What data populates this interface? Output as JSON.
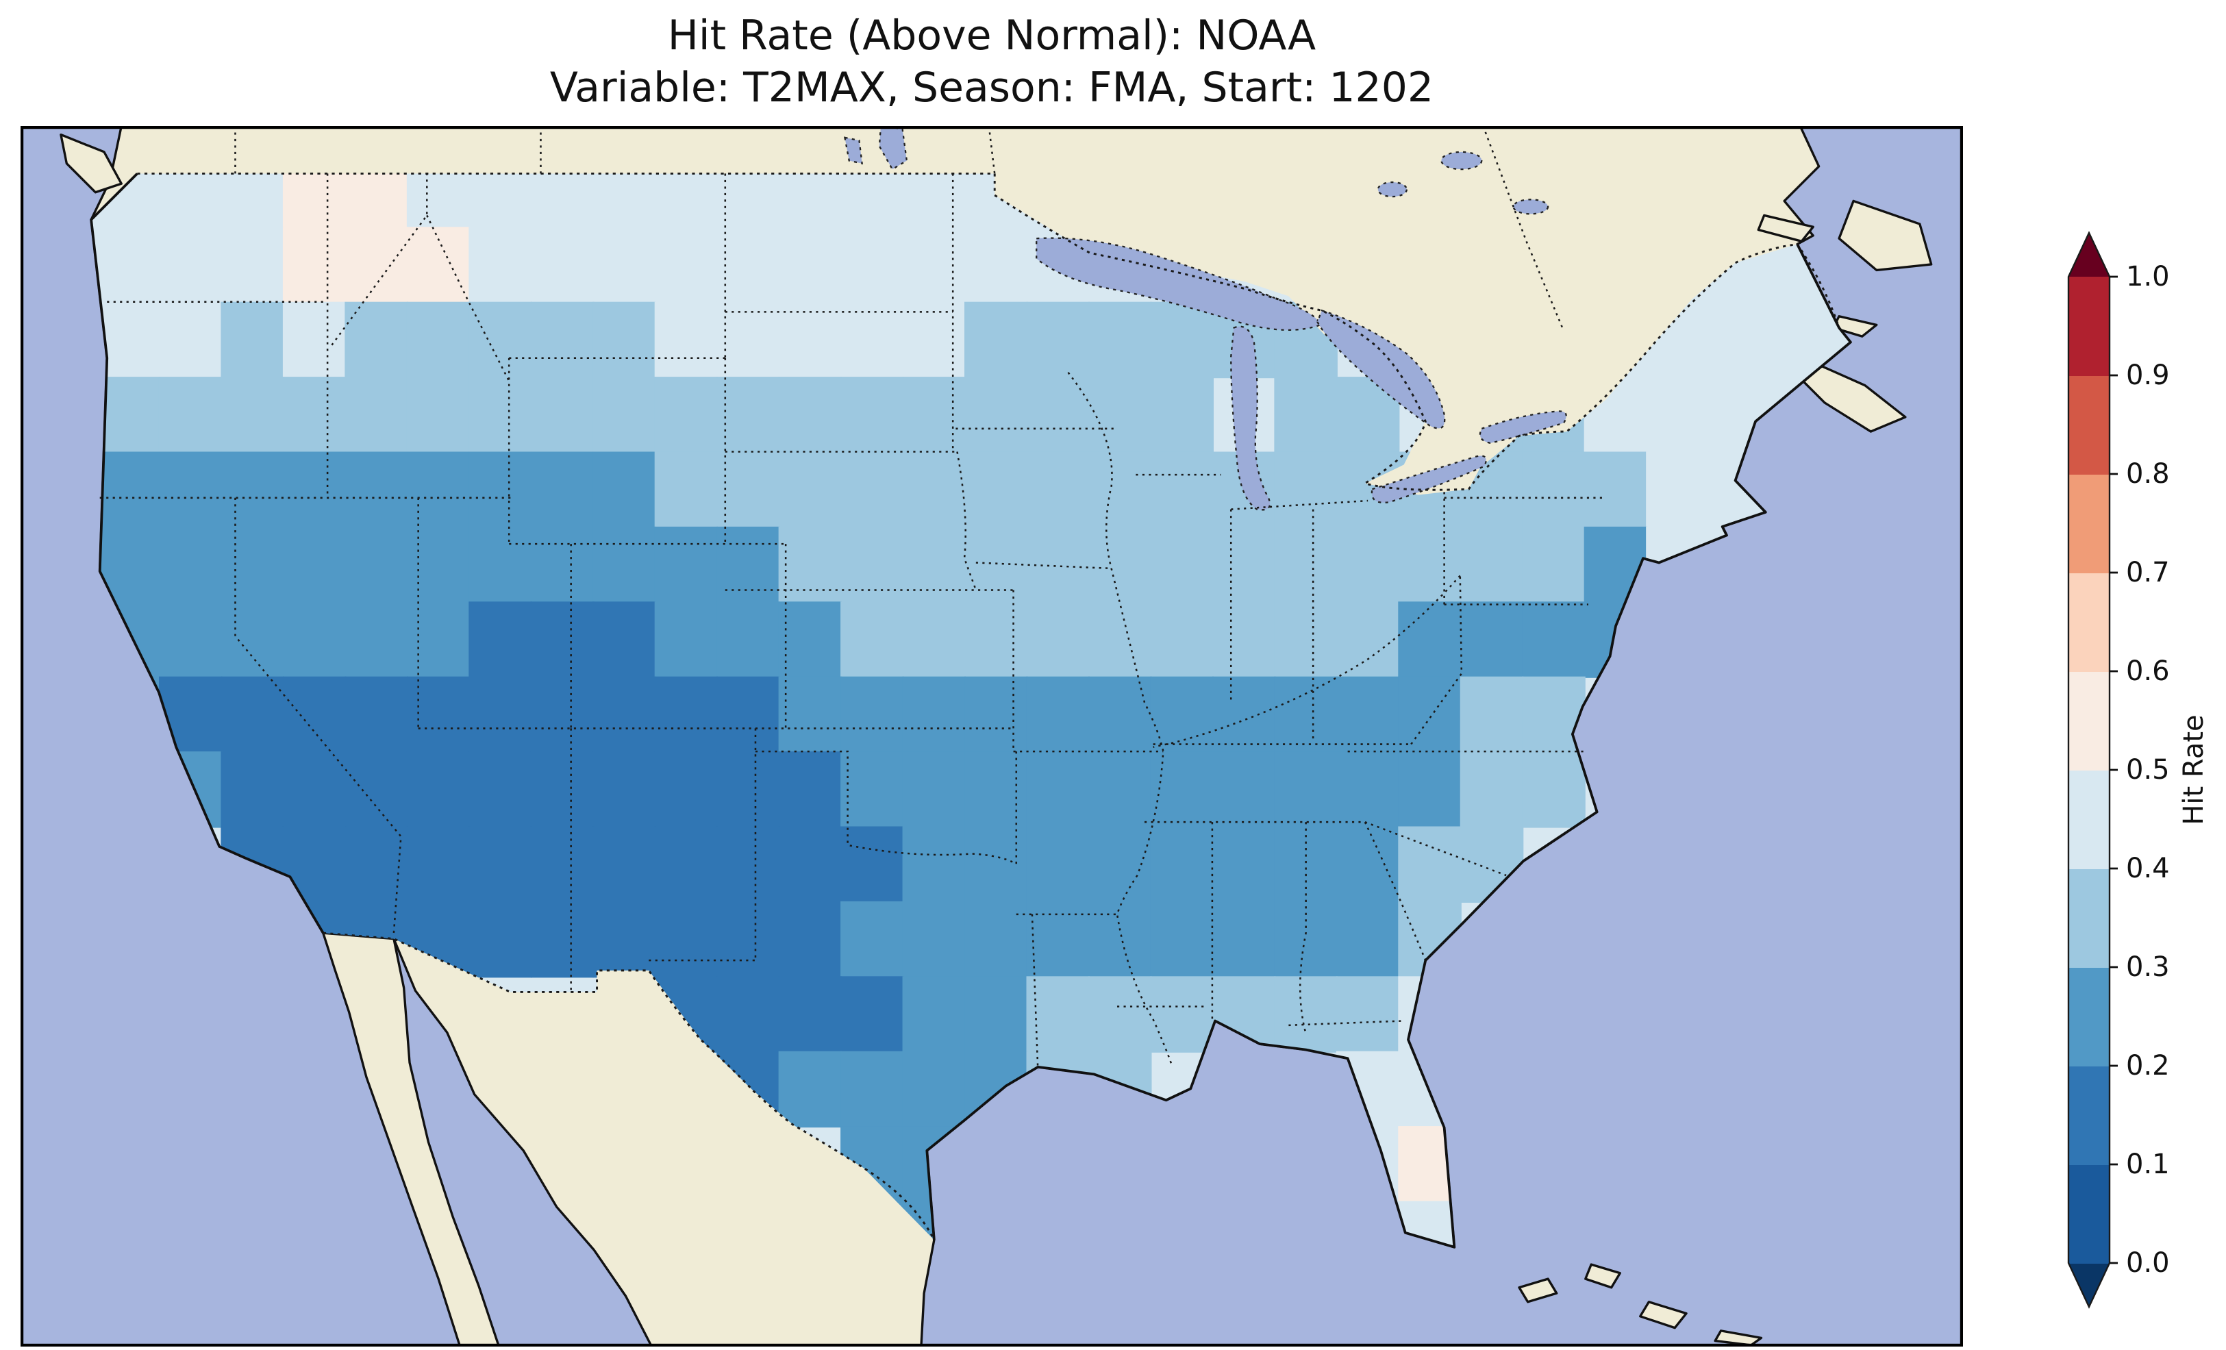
{
  "title": {
    "line1": "Hit Rate (Above Normal): NOAA",
    "line2": "Variable: T2MAX, Season: FMA, Start: 1202"
  },
  "colorbar": {
    "label": "Hit Rate",
    "tick_labels_top_to_bottom": [
      "1.0",
      "0.9",
      "0.8",
      "0.7",
      "0.6",
      "0.5",
      "0.4",
      "0.3",
      "0.2",
      "0.1",
      "0.0"
    ],
    "bin_colors_bottom_to_top": [
      "#1a5a9c",
      "#3076b4",
      "#5199c6",
      "#9dc8e0",
      "#d8e8f1",
      "#f9ece3",
      "#fbd3bc",
      "#f09c77",
      "#d35846",
      "#b0212f"
    ],
    "under_arrow_color": "#0a3666",
    "over_arrow_color": "#67001f",
    "outline_color": "#1a1a1a"
  },
  "map_style": {
    "ocean_color": "#a7b5de",
    "land_color": "#f0ecd6",
    "lake_color": "#9cacd8",
    "us_base_color": "#d8e8f1",
    "border_color": "#1a1a1a"
  },
  "chart_data": {
    "type": "heatmap",
    "title": "Hit Rate (Above Normal): NOAA",
    "subtitle": "Variable: T2MAX, Season: FMA, Start: 1202",
    "source": "NOAA",
    "variable": "T2MAX",
    "season": "FMA",
    "start": "1202",
    "value_name": "Hit Rate",
    "region": "Contiguous United States",
    "vmin": 0.0,
    "vmax": 1.0,
    "bin_size": 0.1,
    "legend_position": "right",
    "grid_note": "Approximate hit-rate bin midpoints on ~2-degree grid; row 0 = north (~49N), col 0 = west (~125W); null = outside CONUS",
    "values": [
      [
        0.45,
        0.45,
        0.45,
        0.45,
        0.55,
        0.55,
        0.45,
        0.45,
        0.45,
        0.45,
        0.45,
        0.45,
        0.45,
        0.45,
        0.45,
        0.45,
        0.45,
        null,
        null,
        null,
        null,
        null,
        null,
        null,
        null,
        null,
        null,
        null,
        null
      ],
      [
        0.45,
        0.45,
        0.45,
        0.45,
        0.55,
        0.55,
        0.55,
        0.45,
        0.45,
        0.45,
        0.45,
        0.45,
        0.45,
        0.45,
        0.45,
        0.45,
        0.45,
        null,
        null,
        null,
        null,
        null,
        null,
        null,
        null,
        null,
        null,
        0.45,
        0.45
      ],
      [
        0.45,
        0.45,
        0.45,
        0.35,
        0.45,
        0.35,
        0.35,
        0.35,
        0.35,
        0.35,
        0.45,
        0.45,
        0.45,
        0.45,
        0.45,
        0.35,
        0.35,
        0.35,
        0.35,
        0.35,
        0.35,
        null,
        null,
        null,
        null,
        0.45,
        0.45,
        0.45,
        0.45
      ],
      [
        0.35,
        0.35,
        0.35,
        0.35,
        0.35,
        0.35,
        0.35,
        0.35,
        0.35,
        0.35,
        0.35,
        0.35,
        0.35,
        0.35,
        0.35,
        0.35,
        0.35,
        0.35,
        0.35,
        null,
        0.35,
        0.35,
        null,
        0.35,
        0.35,
        0.45,
        0.45,
        0.45,
        0.45
      ],
      [
        0.25,
        0.25,
        0.25,
        0.25,
        0.25,
        0.25,
        0.25,
        0.25,
        0.25,
        0.25,
        0.35,
        0.35,
        0.35,
        0.35,
        0.35,
        0.35,
        0.35,
        0.35,
        0.35,
        0.35,
        0.35,
        0.35,
        0.35,
        0.35,
        0.35,
        0.35,
        0.45,
        0.45,
        null
      ],
      [
        0.25,
        0.25,
        0.25,
        0.25,
        0.25,
        0.25,
        0.25,
        0.25,
        0.25,
        0.25,
        0.25,
        0.25,
        0.35,
        0.35,
        0.35,
        0.35,
        0.35,
        0.35,
        0.35,
        0.35,
        0.35,
        0.35,
        0.35,
        0.35,
        0.35,
        0.25,
        0.45,
        null,
        null
      ],
      [
        0.25,
        0.25,
        0.25,
        0.25,
        0.25,
        0.25,
        0.25,
        0.15,
        0.15,
        0.15,
        0.25,
        0.25,
        0.25,
        0.35,
        0.35,
        0.35,
        0.35,
        0.35,
        0.35,
        0.35,
        0.35,
        0.35,
        0.25,
        0.25,
        0.25,
        0.25,
        null,
        null,
        null
      ],
      [
        0.25,
        0.25,
        0.15,
        0.15,
        0.15,
        0.15,
        0.15,
        0.15,
        0.15,
        0.15,
        0.15,
        0.15,
        0.25,
        0.25,
        0.25,
        0.25,
        0.25,
        0.25,
        0.25,
        0.25,
        0.25,
        0.25,
        0.25,
        0.35,
        0.35,
        null,
        null,
        null,
        null
      ],
      [
        null,
        null,
        0.25,
        0.15,
        0.15,
        0.15,
        0.15,
        0.15,
        0.15,
        0.15,
        0.15,
        0.15,
        0.15,
        0.25,
        0.25,
        0.25,
        0.25,
        0.25,
        0.25,
        0.25,
        0.25,
        0.25,
        0.25,
        0.35,
        0.35,
        null,
        null,
        null,
        null
      ],
      [
        null,
        null,
        null,
        0.15,
        0.15,
        0.15,
        0.15,
        0.15,
        0.15,
        0.15,
        0.15,
        0.15,
        0.15,
        0.15,
        0.25,
        0.25,
        0.25,
        0.25,
        0.25,
        0.25,
        0.25,
        0.25,
        0.35,
        0.35,
        null,
        null,
        null,
        null,
        null
      ],
      [
        null,
        null,
        null,
        null,
        0.15,
        0.15,
        0.15,
        0.15,
        0.15,
        0.15,
        0.15,
        0.15,
        0.15,
        0.25,
        0.25,
        0.25,
        0.25,
        0.25,
        0.25,
        0.25,
        0.25,
        0.25,
        0.35,
        null,
        null,
        null,
        null,
        null,
        null
      ],
      [
        null,
        null,
        null,
        null,
        null,
        null,
        null,
        null,
        null,
        null,
        0.15,
        0.15,
        0.15,
        0.15,
        0.25,
        0.25,
        0.35,
        0.35,
        0.35,
        0.35,
        0.35,
        0.35,
        0.45,
        null,
        null,
        null,
        null,
        null,
        null
      ],
      [
        null,
        null,
        null,
        null,
        null,
        null,
        null,
        null,
        null,
        null,
        null,
        0.15,
        0.25,
        0.25,
        0.25,
        0.25,
        0.35,
        0.35,
        null,
        null,
        null,
        0.45,
        0.45,
        null,
        null,
        null,
        null,
        null,
        null
      ],
      [
        null,
        null,
        null,
        null,
        null,
        null,
        null,
        null,
        null,
        null,
        null,
        null,
        null,
        0.25,
        0.25,
        null,
        null,
        null,
        null,
        null,
        null,
        0.45,
        0.55,
        null,
        null,
        null,
        null,
        null,
        null
      ],
      [
        null,
        null,
        null,
        null,
        null,
        null,
        null,
        null,
        null,
        null,
        null,
        null,
        null,
        0.25,
        0.25,
        null,
        null,
        null,
        null,
        null,
        null,
        null,
        0.45,
        0.45,
        null,
        null,
        null,
        null,
        null
      ]
    ]
  }
}
